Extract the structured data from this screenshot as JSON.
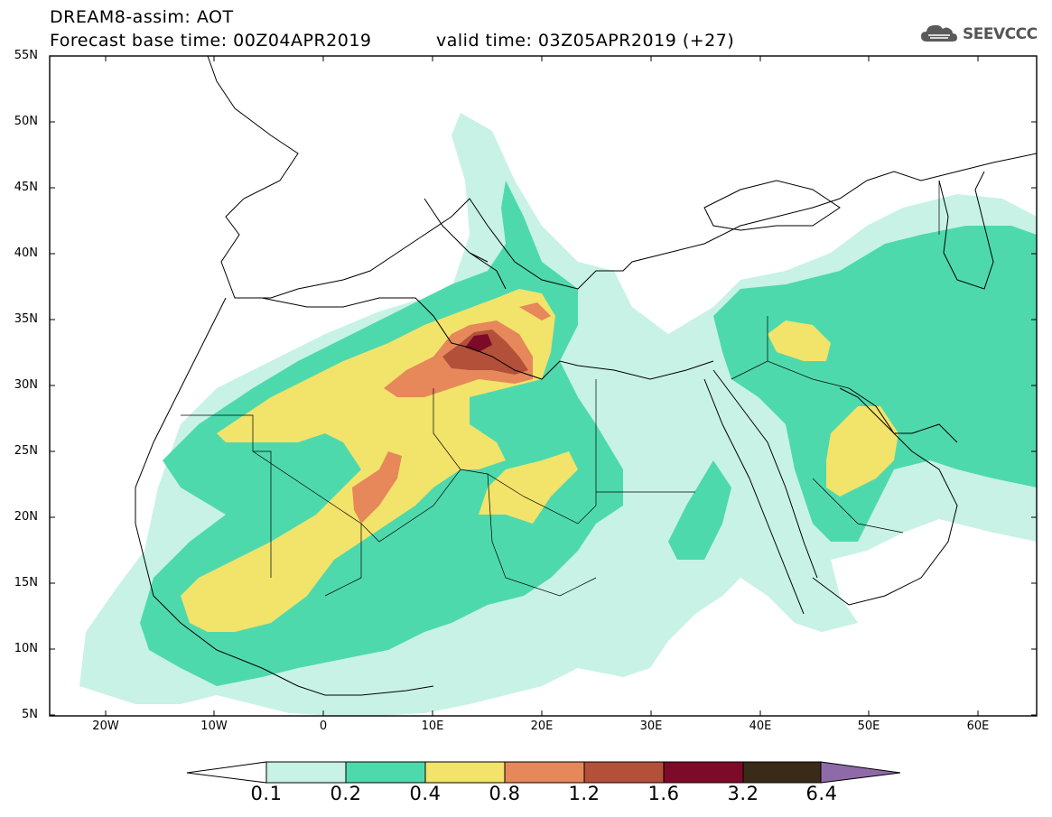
{
  "header": {
    "title_line1": "DREAM8-assim: AOT",
    "base_time": "Forecast base time: 00Z04APR2019",
    "valid_time": "valid time: 03Z05APR2019 (+27)",
    "logo_text": "SEEVCCC",
    "logo_icon": "cloud-icon"
  },
  "map": {
    "lat_labels": [
      "55N",
      "50N",
      "45N",
      "40N",
      "35N",
      "30N",
      "25N",
      "20N",
      "15N",
      "10N",
      "5N"
    ],
    "lon_labels": [
      "20W",
      "10W",
      "0",
      "10E",
      "20E",
      "30E",
      "40E",
      "50E",
      "60E"
    ]
  },
  "colorbar": {
    "colors": [
      "#c8f2e6",
      "#4ed9ad",
      "#f2e36b",
      "#e6885a",
      "#b3503a",
      "#7d0a28",
      "#3a2a18",
      "#8f6aa8"
    ],
    "under_color": "#ffffff",
    "levels": [
      "0.1",
      "0.2",
      "0.4",
      "0.8",
      "1.2",
      "1.6",
      "3.2",
      "6.4"
    ]
  }
}
